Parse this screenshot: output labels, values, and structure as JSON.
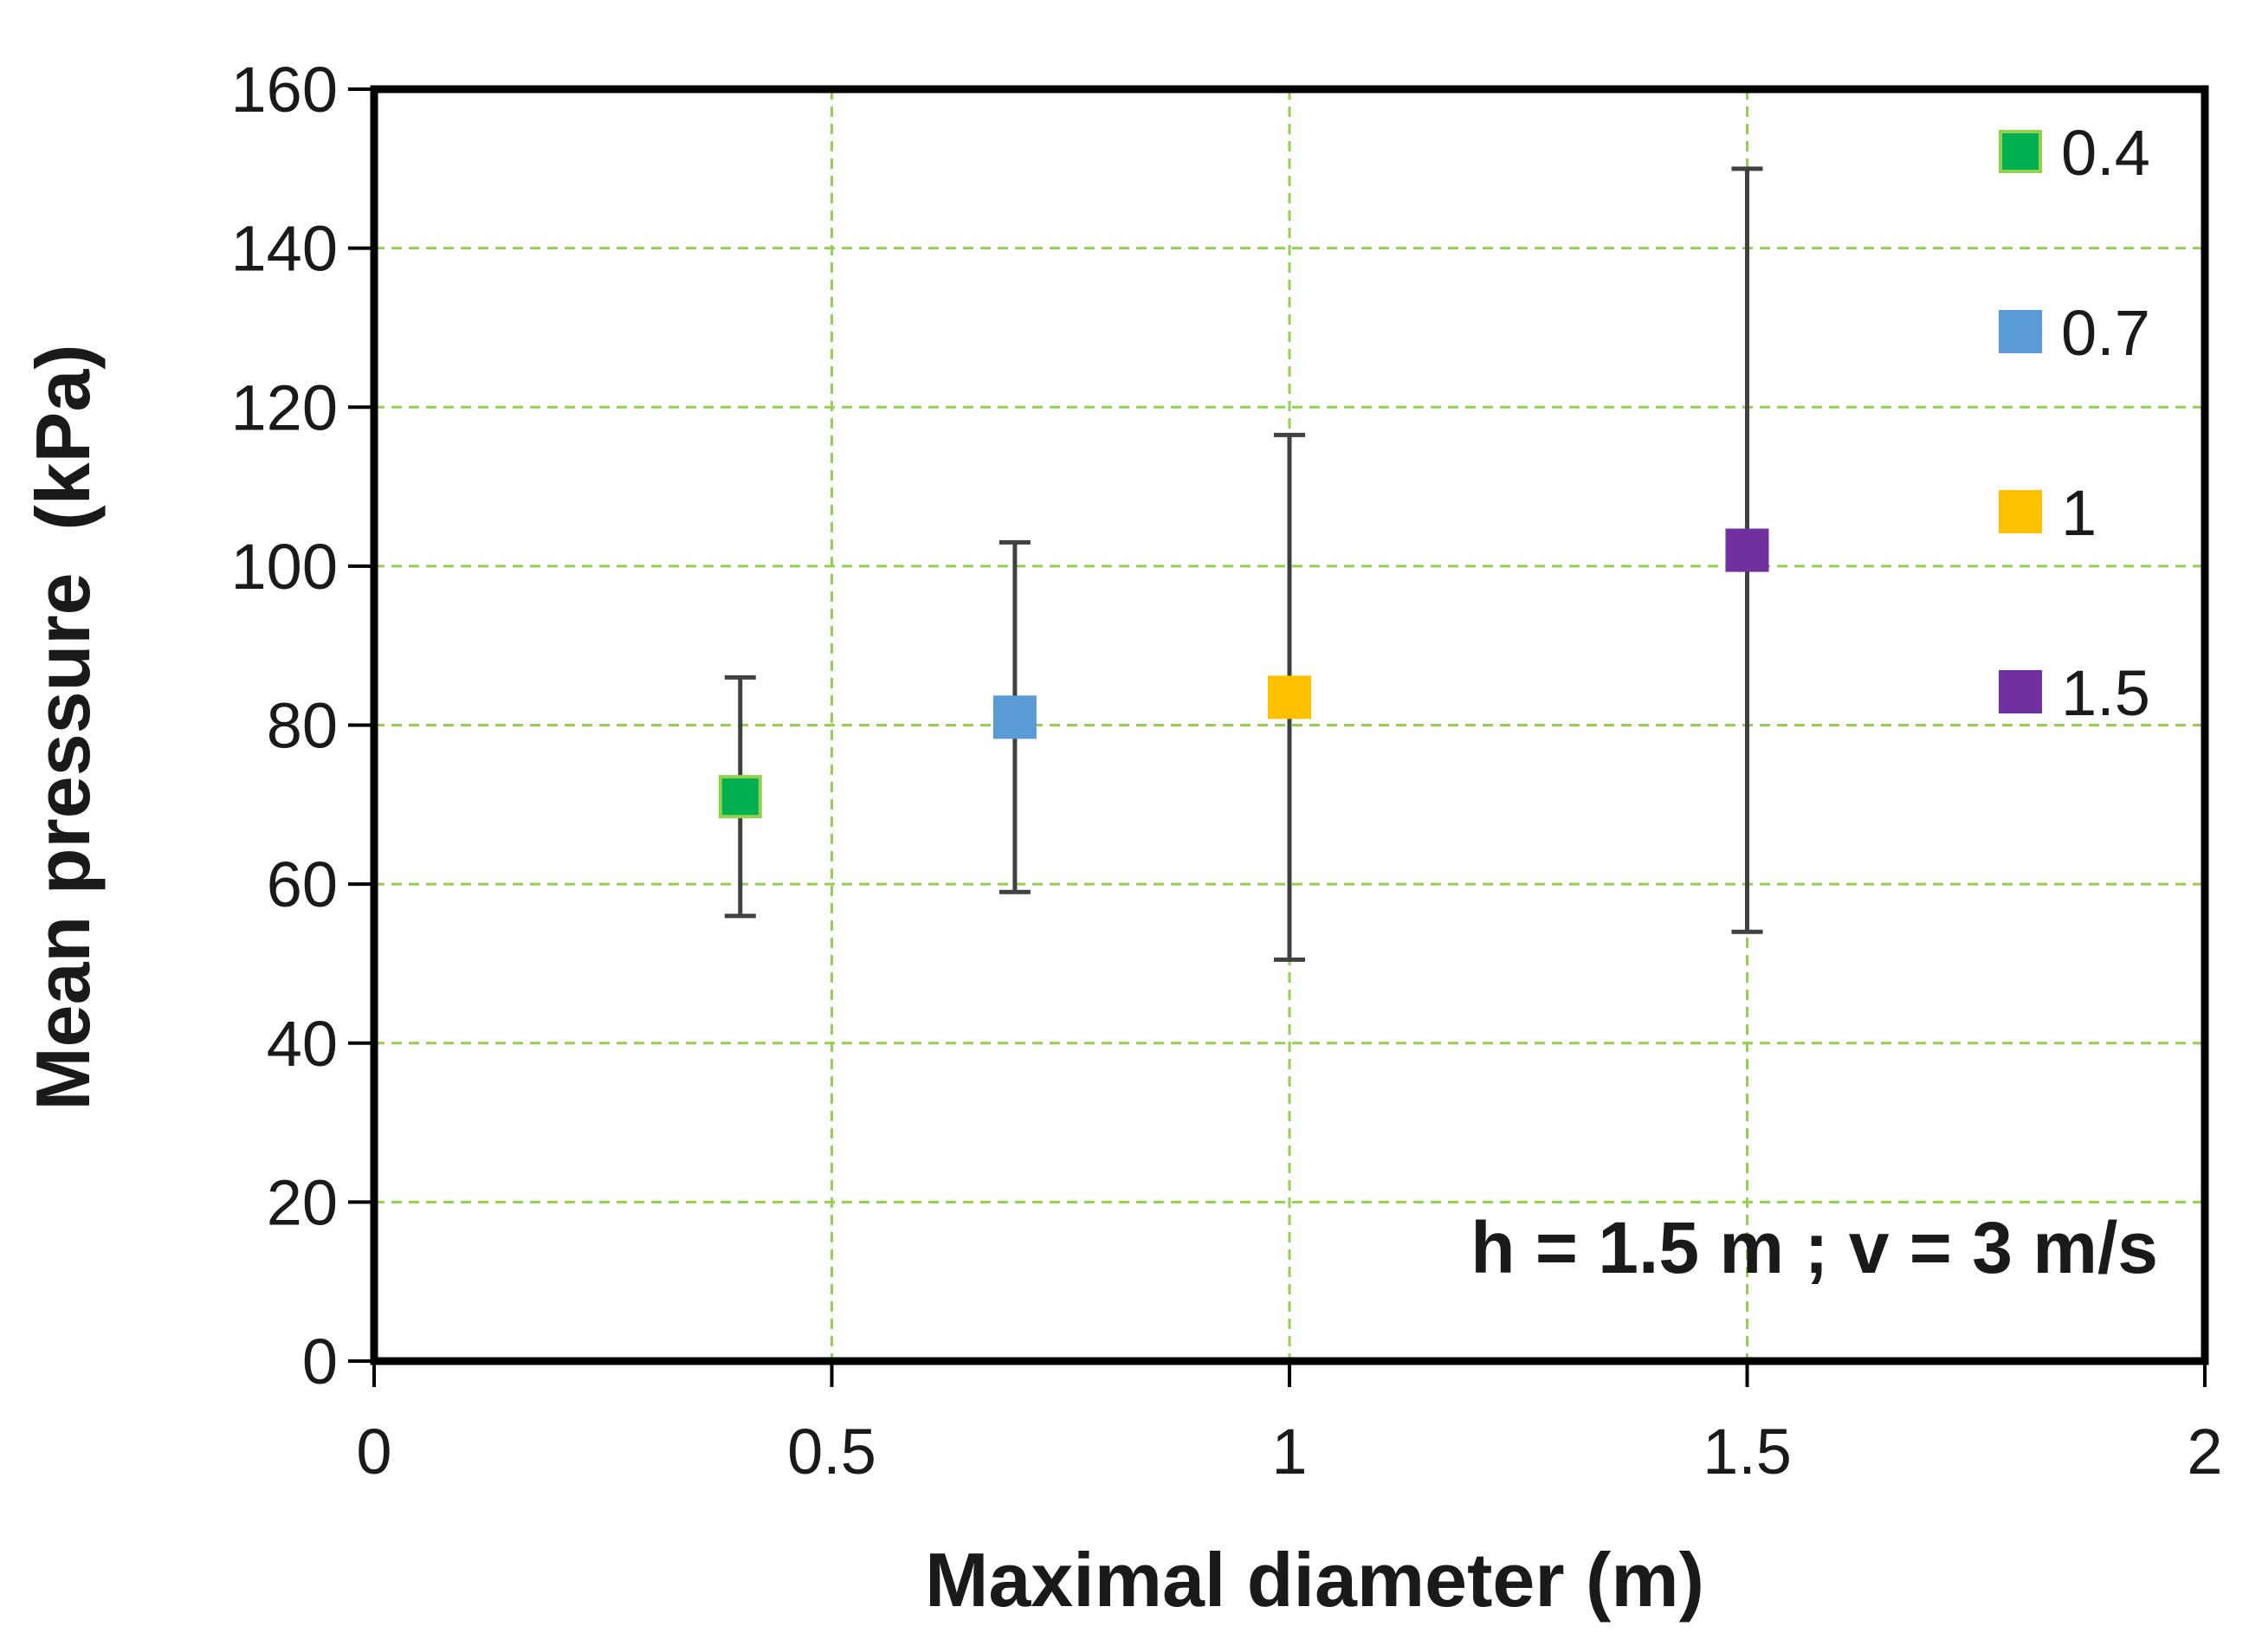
{
  "chart_data": {
    "type": "scatter",
    "title": "",
    "xlabel": "Maximal diameter (m)",
    "ylabel": "Mean pressure  (kPa)",
    "annotation": "h = 1.5 m ; v = 3 m/s",
    "xlim": [
      0,
      2
    ],
    "ylim": [
      0,
      160
    ],
    "x_ticks": [
      "0",
      "0.5",
      "1",
      "1.5",
      "2"
    ],
    "y_ticks": [
      "0",
      "20",
      "40",
      "60",
      "80",
      "100",
      "120",
      "140",
      "160"
    ],
    "grid": true,
    "grid_color": "#92D050",
    "legend_position": "right",
    "series": [
      {
        "name": "0.4",
        "color": "#00B050",
        "x": 0.4,
        "y": 71,
        "y_low": 56,
        "y_high": 86
      },
      {
        "name": "0.7",
        "color": "#5B9BD5",
        "x": 0.7,
        "y": 81,
        "y_low": 59,
        "y_high": 103
      },
      {
        "name": "1",
        "color": "#FFC000",
        "x": 1.0,
        "y": 83.5,
        "y_low": 50.5,
        "y_high": 116.5
      },
      {
        "name": "1.5",
        "color": "#7030A0",
        "x": 1.5,
        "y": 102,
        "y_low": 54,
        "y_high": 150
      }
    ]
  }
}
